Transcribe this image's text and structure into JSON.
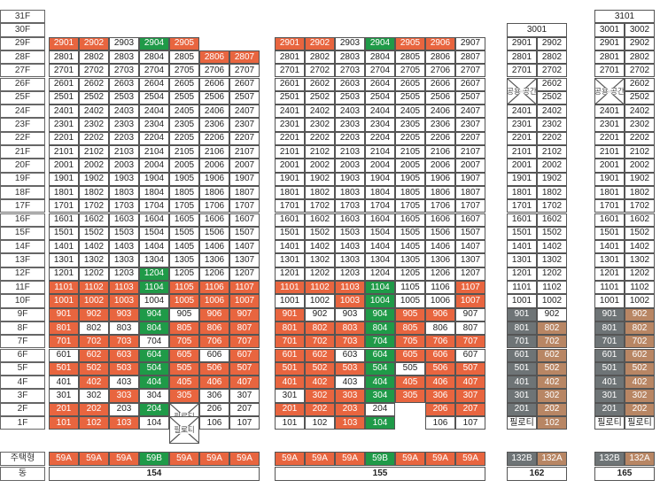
{
  "floors": [
    "31F",
    "30F",
    "29F",
    "28F",
    "27F",
    "26F",
    "25F",
    "24F",
    "23F",
    "22F",
    "21F",
    "20F",
    "19F",
    "18F",
    "17F",
    "16F",
    "15F",
    "14F",
    "13F",
    "12F",
    "11F",
    "10F",
    "9F",
    "8F",
    "7F",
    "6F",
    "5F",
    "4F",
    "3F",
    "2F",
    "1F"
  ],
  "labels": {
    "type_label": "주택형",
    "building_label": "동",
    "pilotis": "필로티",
    "community": "공용 공간"
  },
  "colors": {
    "available": "#ffffff",
    "sold": "#e8653f",
    "type_59B": "#1f9a48",
    "grey": "#6e7476",
    "brown": "#b88664"
  },
  "buildings": [
    {
      "name": "154",
      "types": [
        {
          "t": "59A",
          "c": "o"
        },
        {
          "t": "59A",
          "c": "o"
        },
        {
          "t": "59A",
          "c": "o"
        },
        {
          "t": "59B",
          "c": "g"
        },
        {
          "t": "59A",
          "c": "o"
        },
        {
          "t": "59A",
          "c": "o"
        },
        {
          "t": "59A",
          "c": "o"
        }
      ]
    },
    {
      "name": "155",
      "types": [
        {
          "t": "59A",
          "c": "o"
        },
        {
          "t": "59A",
          "c": "o"
        },
        {
          "t": "59A",
          "c": "o"
        },
        {
          "t": "59B",
          "c": "g"
        },
        {
          "t": "59A",
          "c": "o"
        },
        {
          "t": "59A",
          "c": "o"
        },
        {
          "t": "59A",
          "c": "o"
        }
      ]
    },
    {
      "name": "162",
      "top": "3001",
      "types": [
        {
          "t": "132B",
          "c": "s"
        },
        {
          "t": "132A",
          "c": "b"
        }
      ]
    },
    {
      "name": "165",
      "top": "3101",
      "top2": [
        "3001",
        "3002"
      ],
      "types": [
        {
          "t": "132B",
          "c": "s"
        },
        {
          "t": "132A",
          "c": "b"
        }
      ]
    }
  ]
}
